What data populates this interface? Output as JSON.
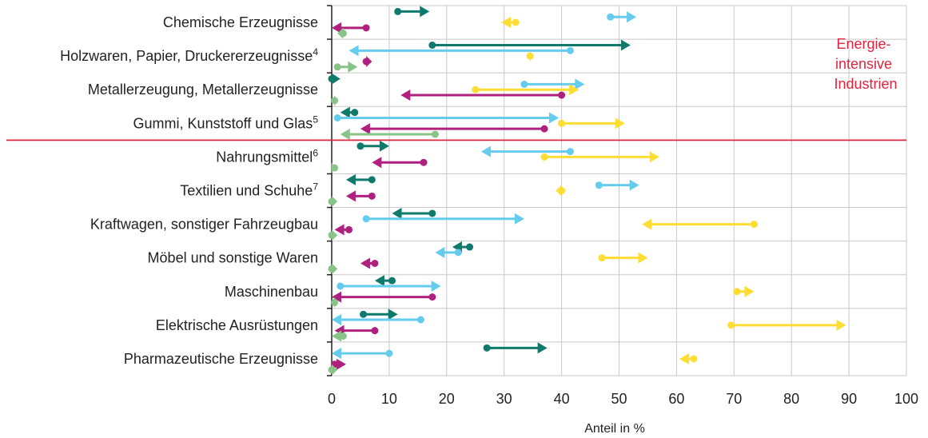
{
  "chart_data": {
    "type": "range-arrow",
    "xlabel": "Anteil in %",
    "xlim": [
      0,
      100
    ],
    "xticks": [
      0,
      10,
      20,
      30,
      40,
      50,
      60,
      70,
      80,
      90,
      100
    ],
    "grid": "vertical",
    "separator_after_category": 4,
    "annotation": {
      "lines": [
        "Energie-",
        "intensive",
        "Industrien"
      ],
      "color": "#e0263f"
    },
    "colors": [
      "#0f7a6c",
      "#e8c2d8",
      "#66ccee",
      "#ffdd33",
      "#b0207e",
      "#88c488"
    ],
    "categories": [
      {
        "label": "Chemische Erzeugnisse",
        "sup": ""
      },
      {
        "label": "Holzwaren, Papier, Druckererzeugnisse",
        "sup": "4"
      },
      {
        "label": "Metallerzeugung, Metallerzeugnisse",
        "sup": ""
      },
      {
        "label": "Gummi, Kunststoff und Glas",
        "sup": "5"
      },
      {
        "label": "Nahrungsmittel",
        "sup": "6"
      },
      {
        "label": "Textilien und Schuhe",
        "sup": "7"
      },
      {
        "label": "Kraftwagen, sonstiger Fahrzeugbau",
        "sup": ""
      },
      {
        "label": "Möbel und sonstige Waren",
        "sup": ""
      },
      {
        "label": "Maschinenbau",
        "sup": ""
      },
      {
        "label": "Elektrische Ausrüstungen",
        "sup": ""
      },
      {
        "label": "Pharmazeutische Erzeugnisse",
        "sup": ""
      }
    ],
    "series": [
      {
        "color": "#0f7a6c",
        "slot": 0,
        "ranges": [
          [
            11.5,
            17
          ],
          [
            17.5,
            52
          ],
          [
            0,
            1.5
          ],
          [
            4,
            1.5
          ],
          [
            5,
            10
          ],
          [
            7,
            2.5
          ],
          [
            17.5,
            10.5
          ],
          [
            24,
            21
          ],
          [
            10.5,
            7.5
          ],
          [
            5.5,
            11.5
          ],
          [
            27,
            37.5
          ]
        ]
      },
      {
        "color": "#66ccee",
        "slot": 1,
        "ranges": [
          [
            48.5,
            53
          ],
          [
            41.5,
            3
          ],
          [
            33.5,
            44
          ],
          [
            1,
            39.5
          ],
          [
            41.5,
            26
          ],
          [
            46.5,
            53.5
          ],
          [
            6,
            33.5
          ],
          [
            22,
            18
          ],
          [
            1.5,
            19
          ],
          [
            15.5,
            0
          ],
          [
            10,
            0
          ]
        ]
      },
      {
        "color": "#ffdd33",
        "slot": 2,
        "ranges": [
          [
            32,
            29.5
          ],
          [
            34.5,
            35
          ],
          [
            25,
            43
          ],
          [
            40,
            51
          ],
          [
            37,
            57
          ],
          [
            40,
            39
          ],
          [
            73.5,
            54
          ],
          [
            47,
            55
          ],
          [
            70.5,
            73.5
          ],
          [
            69.5,
            89.5
          ],
          [
            63,
            60.5
          ]
        ]
      },
      {
        "color": "#b0207e",
        "slot": 3,
        "ranges": [
          [
            6,
            0
          ],
          [
            6,
            7
          ],
          [
            40,
            12
          ],
          [
            37,
            5
          ],
          [
            16,
            7
          ],
          [
            7,
            2.5
          ],
          [
            3,
            0.5
          ],
          [
            7.5,
            5
          ],
          [
            17.5,
            0
          ],
          [
            7.5,
            0.5
          ],
          [
            0.5,
            2.5
          ]
        ]
      },
      {
        "color": "#88c488",
        "slot": 4,
        "ranges": [
          [
            2,
            1
          ],
          [
            1,
            4.5
          ],
          [
            0.5,
            1
          ],
          [
            18,
            1.5
          ],
          [
            0.5,
            0.5
          ],
          [
            0,
            1
          ],
          [
            0,
            1
          ],
          [
            0,
            1
          ],
          [
            0.5,
            1
          ],
          [
            2,
            0
          ],
          [
            0,
            1
          ]
        ]
      }
    ]
  }
}
